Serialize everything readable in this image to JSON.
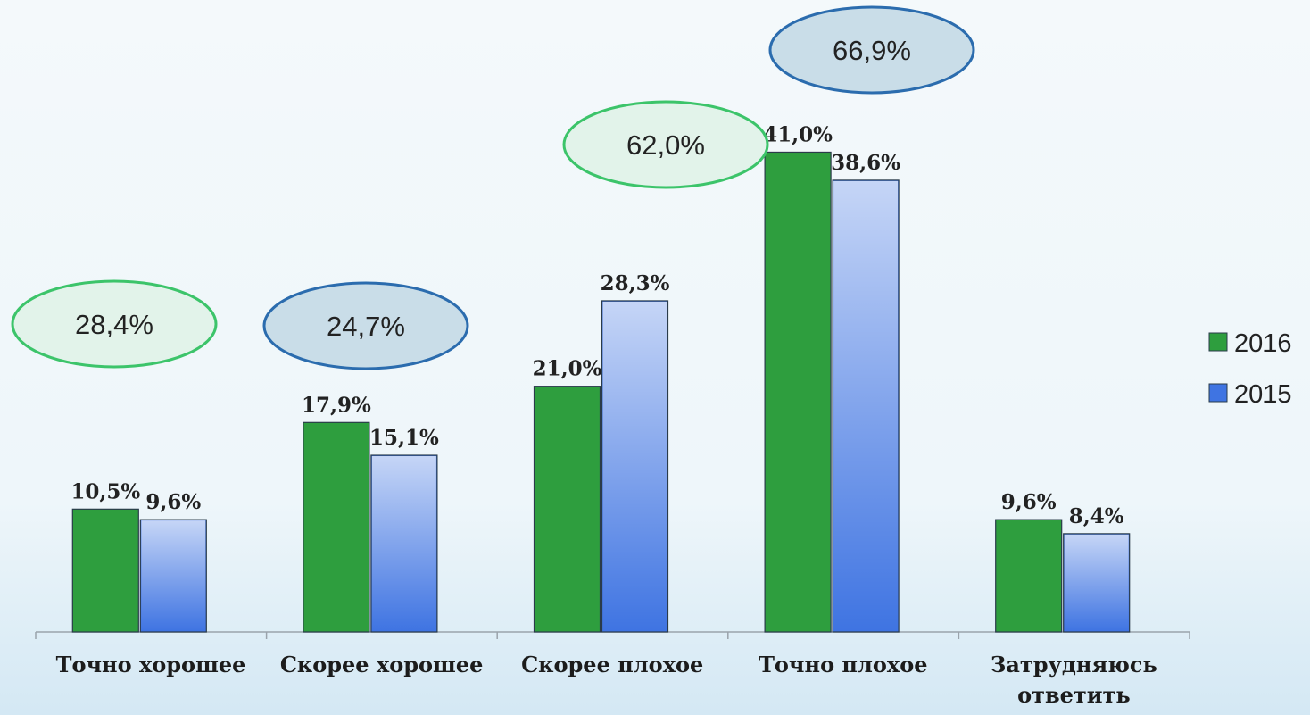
{
  "chart_data": {
    "type": "bar",
    "categories": [
      "Точно хорошее",
      "Скорее хорошее",
      "Скорее плохое",
      "Точно плохое",
      "Затрудняюсь ответить"
    ],
    "series": [
      {
        "name": "2016",
        "color": "#2e9e3e",
        "values": [
          10.5,
          17.9,
          21.0,
          41.0,
          9.6
        ],
        "value_labels": [
          "10,5%",
          "17,9%",
          "21,0%",
          "41,0%",
          "9,6%"
        ]
      },
      {
        "name": "2015",
        "color": "#3f74e2",
        "values": [
          9.6,
          15.1,
          28.3,
          38.6,
          8.4
        ],
        "value_labels": [
          "9,6%",
          "15,1%",
          "28,3%",
          "38,6%",
          "8,4%"
        ]
      }
    ],
    "annotations": [
      "28,4%",
      "24,7%",
      "62,0%",
      "66,9%"
    ],
    "ylim": [
      0,
      54
    ],
    "legend": "right"
  }
}
